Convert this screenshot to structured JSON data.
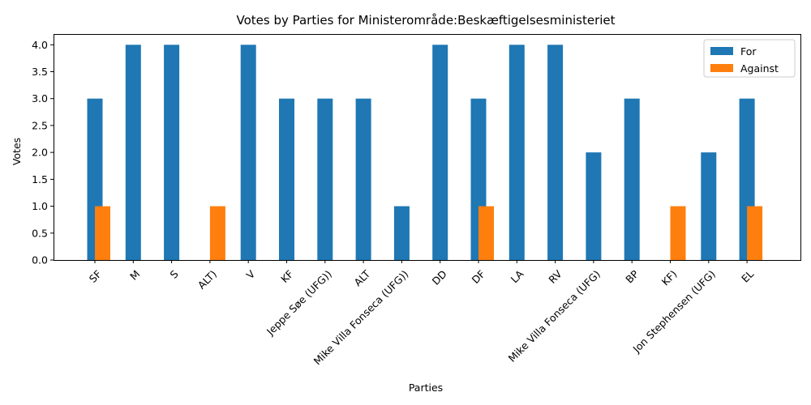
{
  "chart_data": {
    "type": "bar",
    "title": "Votes by Parties for Ministerområde:Beskæftigelsesministeriet",
    "xlabel": "Parties",
    "ylabel": "Votes",
    "ylim": [
      0,
      4.2
    ],
    "yticks": [
      "0.0",
      "0.5",
      "1.0",
      "1.5",
      "2.0",
      "2.5",
      "3.0",
      "3.5",
      "4.0"
    ],
    "categories": [
      "SF",
      "M",
      "S",
      "ALT)",
      "V",
      "KF",
      "Jeppe Søe (UFG))",
      "ALT",
      "Mike Villa Fonseca (UFG))",
      "DD",
      "DF",
      "LA",
      "RV",
      "Mike Villa Fonseca (UFG)",
      "BP",
      "KF)",
      "Jon Stephensen (UFG)",
      "EL"
    ],
    "series": [
      {
        "name": "For",
        "color": "#1f77b4",
        "values": [
          3,
          4,
          4,
          0,
          4,
          3,
          3,
          3,
          1,
          4,
          3,
          4,
          4,
          2,
          3,
          0,
          2,
          3
        ]
      },
      {
        "name": "Against",
        "color": "#ff7f0e",
        "values": [
          1,
          0,
          0,
          1,
          0,
          0,
          0,
          0,
          0,
          0,
          1,
          0,
          0,
          0,
          0,
          1,
          0,
          1
        ]
      }
    ],
    "legend_position": "top-right",
    "grid": false
  }
}
